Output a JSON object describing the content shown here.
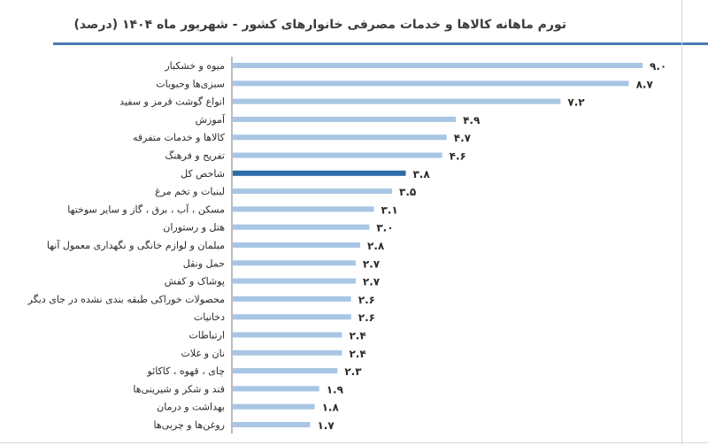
{
  "chart_data": {
    "type": "bar",
    "orientation": "horizontal",
    "title": "تورم ماهانه کالاها و خدمات مصرفی خانوارهای کشور - شهریور ماه ۱۴۰۴ (درصد)",
    "categories": [
      "میوه و خشکبار",
      "سبزی‌ها وحبوبات",
      "انواع گوشت قرمز و سفید",
      "آموزش",
      "کالاها و خدمات متفرقه",
      "تفریح و فرهنگ",
      "شاخص کل",
      "لبنیات و تخم مرغ",
      "مسکن ، آب ، برق ، گاز و سایر سوختها",
      "هتل و رستوران",
      "مبلمان و لوازم خانگی و نگهداری معمول آنها",
      "حمل ونقل",
      "پوشاک و کفش",
      "محصولات خوراکی طبقه بندی نشده در جای دیگر",
      "دخانیات",
      "ارتباطات",
      "نان و غلات",
      "چای ، قهوه ، کاکائو",
      "قند و شکر و شیرینی‌ها",
      "بهداشت و درمان",
      "روغن‌ها و چربی‌ها"
    ],
    "values": [
      9.0,
      8.7,
      7.2,
      4.9,
      4.7,
      4.6,
      3.8,
      3.5,
      3.1,
      3.0,
      2.8,
      2.7,
      2.7,
      2.6,
      2.6,
      2.4,
      2.4,
      2.3,
      1.9,
      1.8,
      1.7
    ],
    "value_labels": [
      "۹.۰",
      "۸.۷",
      "۷.۲",
      "۴.۹",
      "۴.۷",
      "۴.۶",
      "۳.۸",
      "۳.۵",
      "۳.۱",
      "۳.۰",
      "۲.۸",
      "۲.۷",
      "۲.۷",
      "۲.۶",
      "۲.۶",
      "۲.۴",
      "۲.۴",
      "۲.۳",
      "۱.۹",
      "۱.۸",
      "۱.۷"
    ],
    "highlight_index": 6,
    "xlim": [
      0,
      9.0
    ],
    "grid": false,
    "colors": {
      "bar": "#a8c6e4",
      "highlight": "#2e6aa8",
      "label_text": "#2b2b2b",
      "title_text": "#3c3c3c",
      "axis": "#7a7a7a"
    }
  }
}
